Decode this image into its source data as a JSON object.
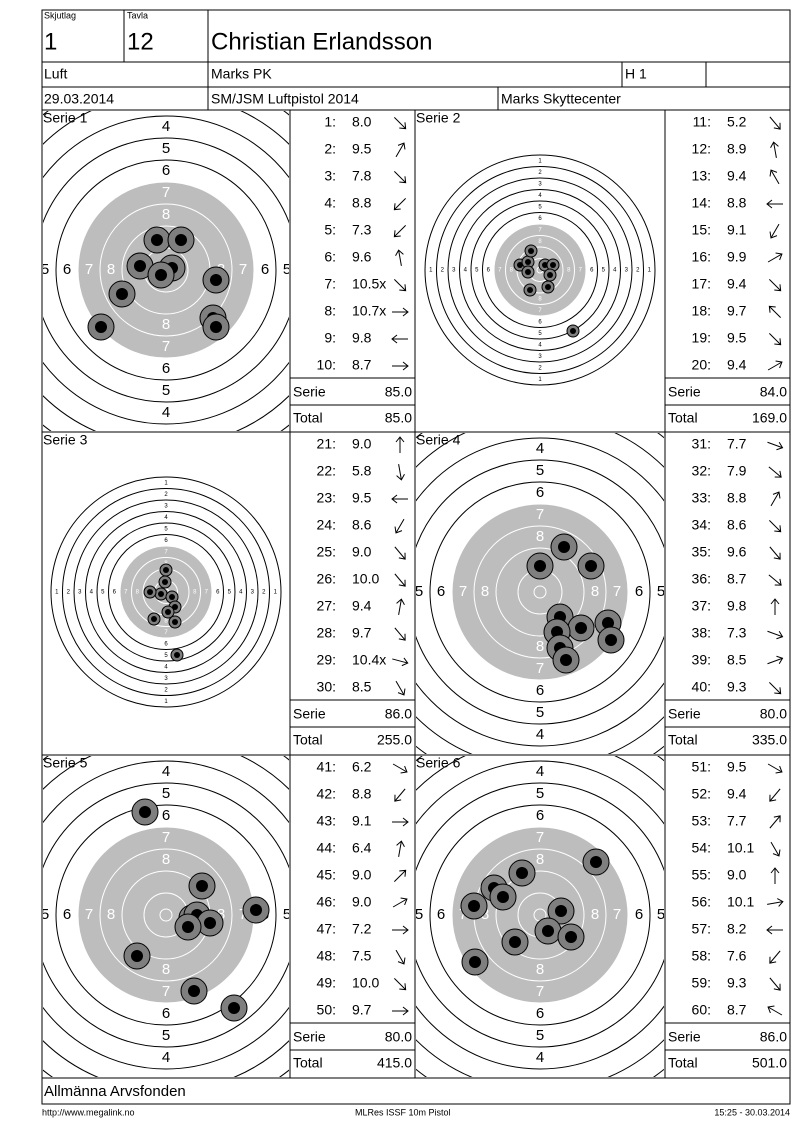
{
  "header": {
    "shooting_group_label": "Skjutlag",
    "shooting_group": "1",
    "target_label": "Tavla",
    "target": "12",
    "name": "Christian Erlandsson",
    "discipline": "Luft",
    "club": "Marks PK",
    "heat": "H 1",
    "date": "29.03.2014",
    "competition": "SM/JSM Luftpistol 2014",
    "venue": "Marks Skyttecenter"
  },
  "ring_labels": [
    "1",
    "2",
    "3",
    "4",
    "5",
    "6",
    "7",
    "8"
  ],
  "series": [
    {
      "title": "Serie 1",
      "shots": [
        {
          "no": "1:",
          "score": "8.0"
        },
        {
          "no": "2:",
          "score": "9.5"
        },
        {
          "no": "3:",
          "score": "7.8"
        },
        {
          "no": "4:",
          "score": "8.8"
        },
        {
          "no": "5:",
          "score": "7.3"
        },
        {
          "no": "6:",
          "score": "9.6"
        },
        {
          "no": "7:",
          "score": "10.5x"
        },
        {
          "no": "8:",
          "score": "10.7x"
        },
        {
          "no": "9:",
          "score": "9.8"
        },
        {
          "no": "10:",
          "score": "8.7"
        }
      ],
      "serie_label": "Serie",
      "serie": "85.0",
      "total_label": "Total",
      "total": "85.0"
    },
    {
      "title": "Serie 2",
      "shots": [
        {
          "no": "11:",
          "score": "5.2"
        },
        {
          "no": "12:",
          "score": "8.9"
        },
        {
          "no": "13:",
          "score": "9.4"
        },
        {
          "no": "14:",
          "score": "8.8"
        },
        {
          "no": "15:",
          "score": "9.1"
        },
        {
          "no": "16:",
          "score": "9.9"
        },
        {
          "no": "17:",
          "score": "9.4"
        },
        {
          "no": "18:",
          "score": "9.7"
        },
        {
          "no": "19:",
          "score": "9.5"
        },
        {
          "no": "20:",
          "score": "9.4"
        }
      ],
      "serie_label": "Serie",
      "serie": "84.0",
      "total_label": "Total",
      "total": "169.0"
    },
    {
      "title": "Serie 3",
      "shots": [
        {
          "no": "21:",
          "score": "9.0"
        },
        {
          "no": "22:",
          "score": "5.8"
        },
        {
          "no": "23:",
          "score": "9.5"
        },
        {
          "no": "24:",
          "score": "8.6"
        },
        {
          "no": "25:",
          "score": "9.0"
        },
        {
          "no": "26:",
          "score": "10.0"
        },
        {
          "no": "27:",
          "score": "9.4"
        },
        {
          "no": "28:",
          "score": "9.7"
        },
        {
          "no": "29:",
          "score": "10.4x"
        },
        {
          "no": "30:",
          "score": "8.5"
        }
      ],
      "serie_label": "Serie",
      "serie": "86.0",
      "total_label": "Total",
      "total": "255.0"
    },
    {
      "title": "Serie 4",
      "shots": [
        {
          "no": "31:",
          "score": "7.7"
        },
        {
          "no": "32:",
          "score": "7.9"
        },
        {
          "no": "33:",
          "score": "8.8"
        },
        {
          "no": "34:",
          "score": "8.6"
        },
        {
          "no": "35:",
          "score": "9.6"
        },
        {
          "no": "36:",
          "score": "8.7"
        },
        {
          "no": "37:",
          "score": "9.8"
        },
        {
          "no": "38:",
          "score": "7.3"
        },
        {
          "no": "39:",
          "score": "8.5"
        },
        {
          "no": "40:",
          "score": "9.3"
        }
      ],
      "serie_label": "Serie",
      "serie": "80.0",
      "total_label": "Total",
      "total": "335.0"
    },
    {
      "title": "Serie 5",
      "shots": [
        {
          "no": "41:",
          "score": "6.2"
        },
        {
          "no": "42:",
          "score": "8.8"
        },
        {
          "no": "43:",
          "score": "9.1"
        },
        {
          "no": "44:",
          "score": "6.4"
        },
        {
          "no": "45:",
          "score": "9.0"
        },
        {
          "no": "46:",
          "score": "9.0"
        },
        {
          "no": "47:",
          "score": "7.2"
        },
        {
          "no": "48:",
          "score": "7.5"
        },
        {
          "no": "49:",
          "score": "10.0"
        },
        {
          "no": "50:",
          "score": "9.7"
        }
      ],
      "serie_label": "Serie",
      "serie": "80.0",
      "total_label": "Total",
      "total": "415.0"
    },
    {
      "title": "Serie 6",
      "shots": [
        {
          "no": "51:",
          "score": "9.5"
        },
        {
          "no": "52:",
          "score": "9.4"
        },
        {
          "no": "53:",
          "score": "7.7"
        },
        {
          "no": "54:",
          "score": "10.1"
        },
        {
          "no": "55:",
          "score": "9.0"
        },
        {
          "no": "56:",
          "score": "10.1"
        },
        {
          "no": "57:",
          "score": "8.2"
        },
        {
          "no": "58:",
          "score": "7.6"
        },
        {
          "no": "59:",
          "score": "9.3"
        },
        {
          "no": "60:",
          "score": "8.7"
        }
      ],
      "serie_label": "Serie",
      "serie": "86.0",
      "total_label": "Total",
      "total": "501.0"
    }
  ],
  "sponsor": "Allmänna Arvsfonden",
  "footer": {
    "url": "http://www.megalink.no",
    "software": "MLRes ISSF 10m Pistol",
    "timestamp": "15:25 - 30.03.2014"
  }
}
